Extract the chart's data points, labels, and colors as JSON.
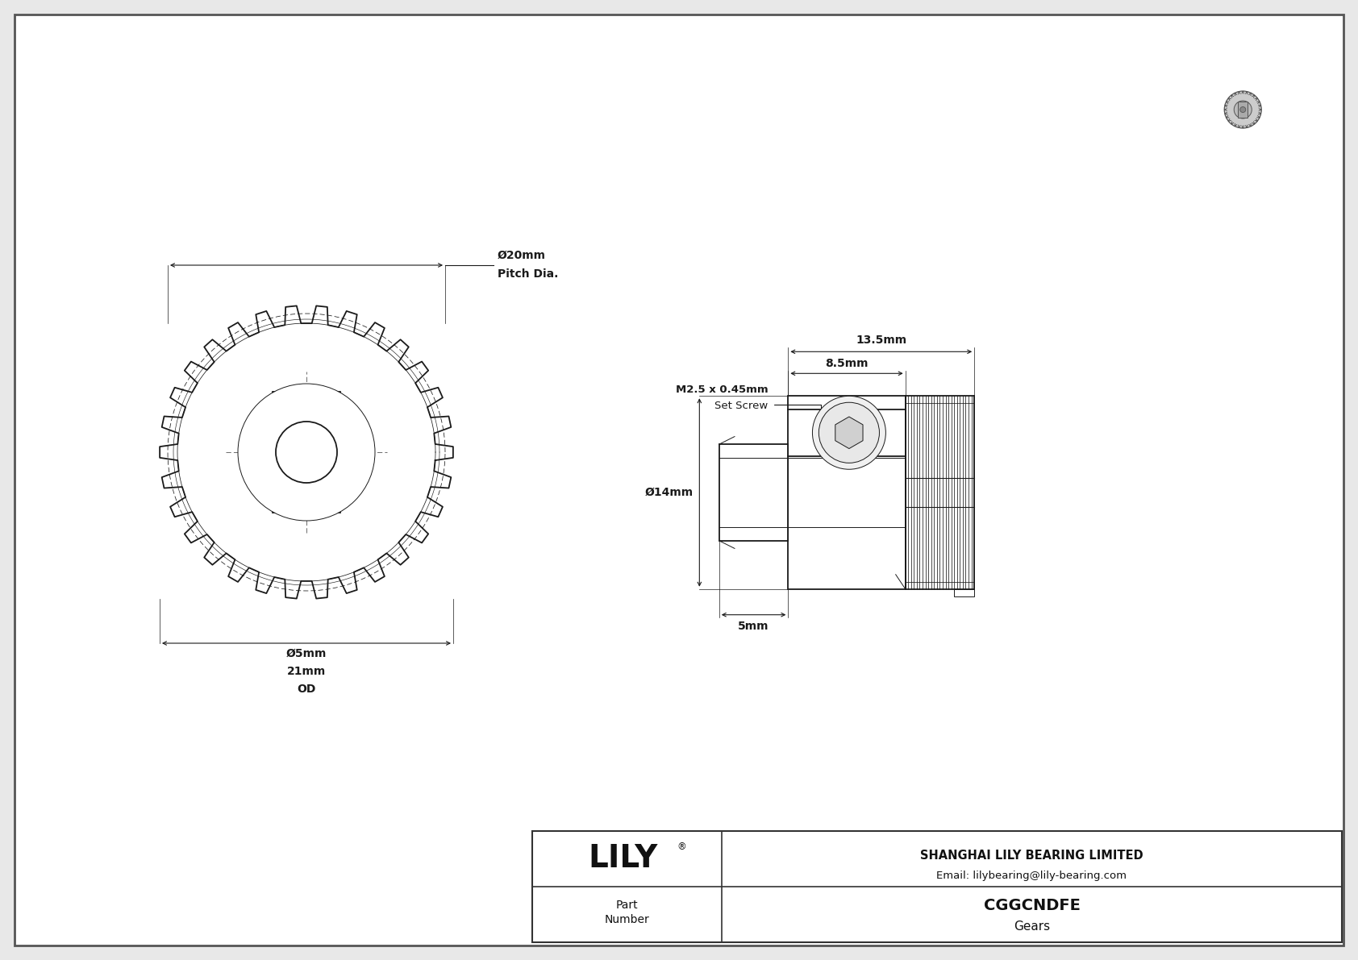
{
  "bg_color": "#e8e8e8",
  "drawing_bg": "#ffffff",
  "line_color": "#1a1a1a",
  "company": "SHANGHAI LILY BEARING LIMITED",
  "email": "Email: lilybearing@lily-bearing.com",
  "part_number": "CGGCNDFE",
  "part_type": "Gears",
  "dim_pitch": "Ø20mm",
  "dim_pitch2": "Pitch Dia.",
  "dim_od1": "Ø5mm",
  "dim_od2": "21mm",
  "dim_od3": "OD",
  "dim_13_5": "13.5mm",
  "dim_8_5": "8.5mm",
  "dim_5": "5mm",
  "dim_14": "Ø14mm",
  "set_screw1": "M2.5 x 0.45mm",
  "set_screw2": "Set Screw",
  "n_teeth": 30
}
